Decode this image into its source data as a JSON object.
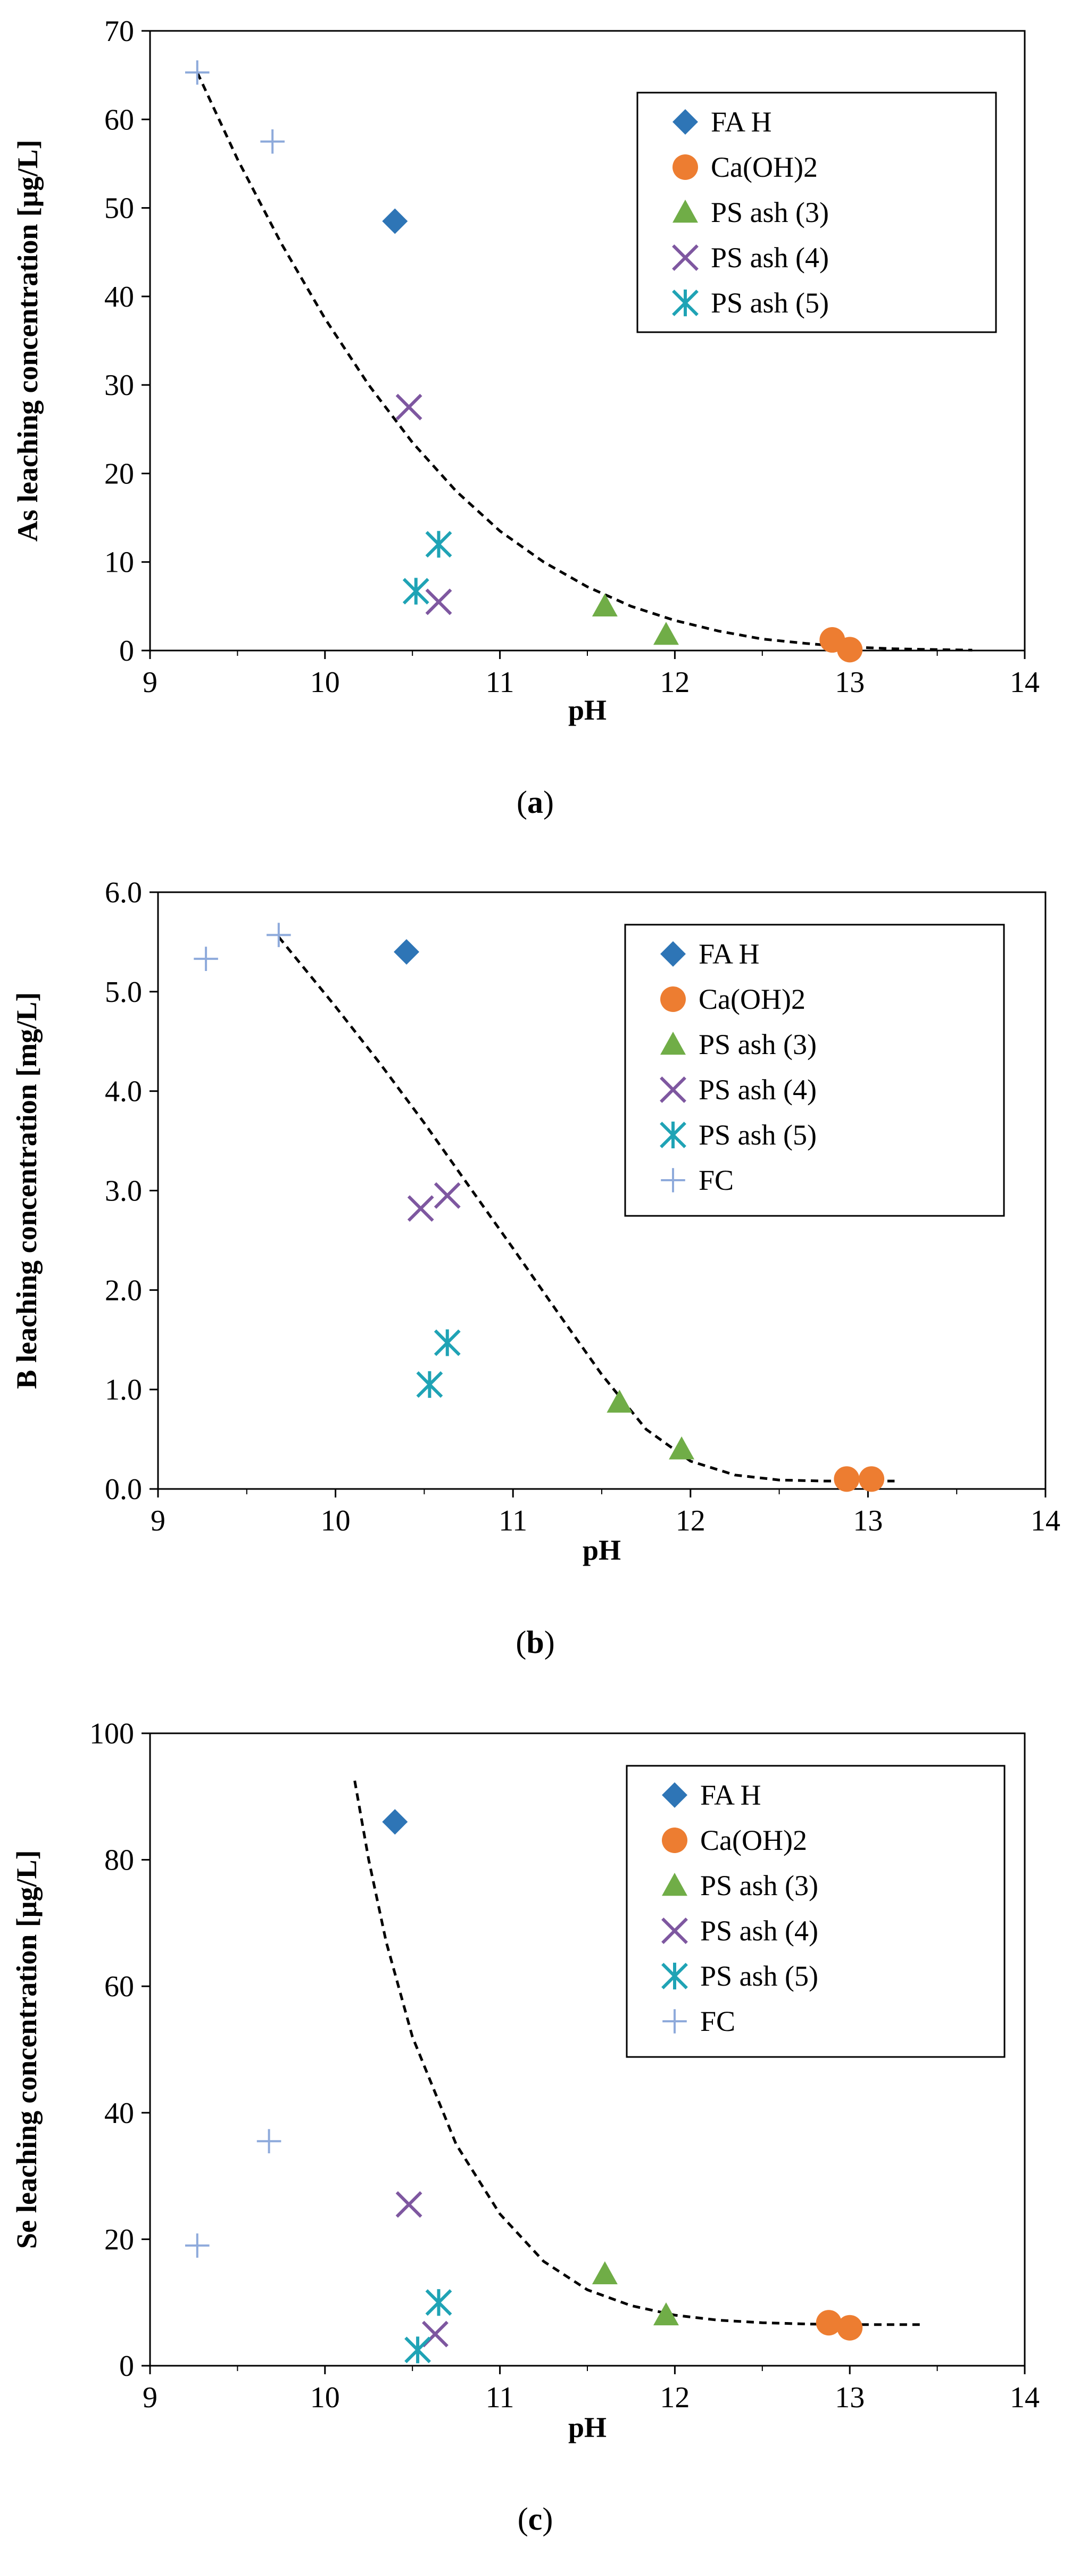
{
  "colors": {
    "FA H": "#2E75B6",
    "Ca(OH)2": "#ED7D31",
    "PS ash (3)": "#70AD47",
    "PS ash (4)": "#7E57A0",
    "PS ash (5)": "#1FA3B5",
    "FC": "#8EAADB",
    "trend": "#000000",
    "axis": "#000000"
  },
  "chart_data": [
    {
      "type": "scatter",
      "panel_label": "a",
      "xlabel": "pH",
      "ylabel": "As leaching concentration  [μg/L]",
      "xlim": [
        9,
        14
      ],
      "ylim": [
        0,
        70
      ],
      "xticks": [
        9,
        10,
        11,
        12,
        13,
        14
      ],
      "yticks": [
        0,
        10,
        20,
        30,
        40,
        50,
        60,
        70
      ],
      "ytick_labels": [
        "0",
        "10",
        "20",
        "30",
        "40",
        "50",
        "60",
        "70"
      ],
      "legend": [
        "FA H",
        "Ca(OH)2",
        "PS ash (3)",
        "PS ash (4)",
        "PS ash (5)"
      ],
      "legend_position": "top-right",
      "series": [
        {
          "name": "FA H",
          "marker": "diamond",
          "points": [
            [
              10.4,
              48.5
            ]
          ]
        },
        {
          "name": "Ca(OH)2",
          "marker": "circle",
          "points": [
            [
              12.9,
              1.2
            ],
            [
              13.0,
              0.1
            ]
          ]
        },
        {
          "name": "PS ash (3)",
          "marker": "triangle",
          "points": [
            [
              11.6,
              5.0
            ],
            [
              11.95,
              1.8
            ]
          ]
        },
        {
          "name": "PS ash (4)",
          "marker": "x",
          "points": [
            [
              10.48,
              27.5
            ],
            [
              10.65,
              5.5
            ]
          ]
        },
        {
          "name": "PS ash (5)",
          "marker": "asterisk",
          "points": [
            [
              10.65,
              12.0
            ],
            [
              10.52,
              6.7
            ]
          ]
        },
        {
          "name": "FC",
          "marker": "plus",
          "points": [
            [
              9.27,
              65.3
            ],
            [
              9.7,
              57.5
            ]
          ]
        }
      ],
      "trendline": {
        "points": [
          [
            9.27,
            65.3
          ],
          [
            9.5,
            55.5
          ],
          [
            9.75,
            46.0
          ],
          [
            10.0,
            37.5
          ],
          [
            10.25,
            30.0
          ],
          [
            10.5,
            23.5
          ],
          [
            10.75,
            18.0
          ],
          [
            11.0,
            13.5
          ],
          [
            11.25,
            10.0
          ],
          [
            11.5,
            7.2
          ],
          [
            11.75,
            5.0
          ],
          [
            12.0,
            3.4
          ],
          [
            12.25,
            2.2
          ],
          [
            12.5,
            1.3
          ],
          [
            12.75,
            0.8
          ],
          [
            13.0,
            0.4
          ],
          [
            13.25,
            0.2
          ],
          [
            13.5,
            0.1
          ],
          [
            13.7,
            0.05
          ]
        ]
      }
    },
    {
      "type": "scatter",
      "panel_label": "b",
      "xlabel": "pH",
      "ylabel": "B leaching concentration  [mg/L]",
      "xlim": [
        9,
        14
      ],
      "ylim": [
        0,
        6
      ],
      "xticks": [
        9,
        10,
        11,
        12,
        13,
        14
      ],
      "yticks": [
        0,
        1,
        2,
        3,
        4,
        5,
        6
      ],
      "ytick_labels": [
        "0.0",
        "1.0",
        "2.0",
        "3.0",
        "4.0",
        "5.0",
        "6.0"
      ],
      "legend": [
        "FA H",
        "Ca(OH)2",
        "PS ash (3)",
        "PS ash (4)",
        "PS ash (5)",
        "FC"
      ],
      "legend_position": "top-right",
      "series": [
        {
          "name": "FA H",
          "marker": "diamond",
          "points": [
            [
              10.4,
              5.4
            ]
          ]
        },
        {
          "name": "Ca(OH)2",
          "marker": "circle",
          "points": [
            [
              12.88,
              0.1
            ],
            [
              13.02,
              0.1
            ]
          ]
        },
        {
          "name": "PS ash (3)",
          "marker": "triangle",
          "points": [
            [
              11.6,
              0.87
            ],
            [
              11.95,
              0.4
            ]
          ]
        },
        {
          "name": "PS ash (4)",
          "marker": "x",
          "points": [
            [
              10.48,
              2.82
            ],
            [
              10.63,
              2.95
            ]
          ]
        },
        {
          "name": "PS ash (5)",
          "marker": "asterisk",
          "points": [
            [
              10.53,
              1.05
            ],
            [
              10.63,
              1.47
            ]
          ]
        },
        {
          "name": "FC",
          "marker": "plus",
          "points": [
            [
              9.27,
              5.33
            ],
            [
              9.68,
              5.57
            ]
          ]
        }
      ],
      "trendline": {
        "points": [
          [
            9.68,
            5.55
          ],
          [
            10.0,
            4.85
          ],
          [
            10.25,
            4.28
          ],
          [
            10.5,
            3.68
          ],
          [
            10.75,
            3.05
          ],
          [
            11.0,
            2.42
          ],
          [
            11.25,
            1.78
          ],
          [
            11.5,
            1.15
          ],
          [
            11.75,
            0.6
          ],
          [
            12.0,
            0.28
          ],
          [
            12.25,
            0.14
          ],
          [
            12.5,
            0.09
          ],
          [
            12.75,
            0.08
          ],
          [
            13.0,
            0.08
          ],
          [
            13.15,
            0.08
          ]
        ]
      }
    },
    {
      "type": "scatter",
      "panel_label": "c",
      "xlabel": "pH",
      "ylabel": "Se leaching concentration  [μg/L]",
      "xlim": [
        9,
        14
      ],
      "ylim": [
        0,
        100
      ],
      "xticks": [
        9,
        10,
        11,
        12,
        13,
        14
      ],
      "yticks": [
        0,
        20,
        40,
        60,
        80,
        100
      ],
      "ytick_labels": [
        "0",
        "20",
        "40",
        "60",
        "80",
        "100"
      ],
      "legend": [
        "FA H",
        "Ca(OH)2",
        "PS ash (3)",
        "PS ash (4)",
        "PS ash (5)",
        "FC"
      ],
      "legend_position": "top-right",
      "series": [
        {
          "name": "FA H",
          "marker": "diamond",
          "points": [
            [
              10.4,
              86.0
            ]
          ]
        },
        {
          "name": "Ca(OH)2",
          "marker": "circle",
          "points": [
            [
              12.88,
              6.8
            ],
            [
              13.0,
              6.0
            ]
          ]
        },
        {
          "name": "PS ash (3)",
          "marker": "triangle",
          "points": [
            [
              11.6,
              14.5
            ],
            [
              11.95,
              8.0
            ]
          ]
        },
        {
          "name": "PS ash (4)",
          "marker": "x",
          "points": [
            [
              10.48,
              25.5
            ],
            [
              10.63,
              5.0
            ]
          ]
        },
        {
          "name": "PS ash (5)",
          "marker": "asterisk",
          "points": [
            [
              10.65,
              10.0
            ],
            [
              10.53,
              2.5
            ]
          ]
        },
        {
          "name": "FC",
          "marker": "plus",
          "points": [
            [
              9.27,
              19.0
            ],
            [
              9.68,
              35.5
            ]
          ]
        }
      ],
      "trendline": {
        "points": [
          [
            10.17,
            92.5
          ],
          [
            10.25,
            80.0
          ],
          [
            10.35,
            67.0
          ],
          [
            10.5,
            52.0
          ],
          [
            10.75,
            35.0
          ],
          [
            11.0,
            24.0
          ],
          [
            11.25,
            16.5
          ],
          [
            11.5,
            12.0
          ],
          [
            11.75,
            9.5
          ],
          [
            12.0,
            8.0
          ],
          [
            12.25,
            7.2
          ],
          [
            12.5,
            6.8
          ],
          [
            12.75,
            6.6
          ],
          [
            13.0,
            6.5
          ],
          [
            13.4,
            6.5
          ]
        ]
      }
    }
  ]
}
